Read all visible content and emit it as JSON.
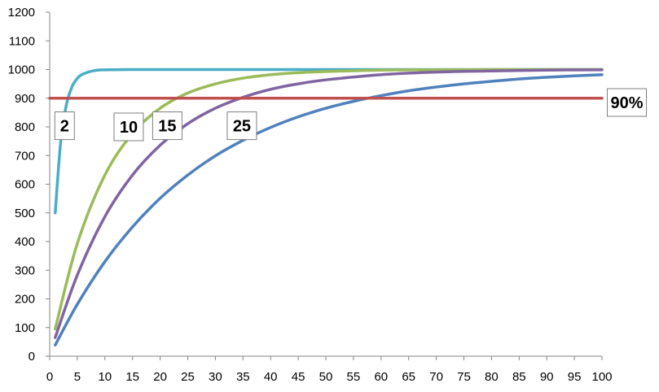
{
  "chart_data": {
    "type": "line",
    "title": "",
    "xlabel": "",
    "ylabel": "",
    "xlim": [
      0,
      100
    ],
    "ylim": [
      0,
      1200
    ],
    "x_ticks": [
      0,
      5,
      10,
      15,
      20,
      25,
      30,
      35,
      40,
      45,
      50,
      55,
      60,
      65,
      70,
      75,
      80,
      85,
      90,
      95,
      100
    ],
    "y_ticks": [
      0,
      100,
      200,
      300,
      400,
      500,
      600,
      700,
      800,
      900,
      1000,
      1100,
      1200
    ],
    "grid": false,
    "legend": "none",
    "series": [
      {
        "label": "2",
        "color": "#4bacc6",
        "x": [
          1,
          2,
          3,
          4,
          5,
          6,
          8,
          10,
          15,
          20,
          30,
          50,
          75,
          100
        ],
        "y": [
          500,
          750,
          875,
          938,
          969,
          984,
          996,
          999,
          1000,
          1000,
          1000,
          1000,
          1000,
          1000
        ]
      },
      {
        "label": "10",
        "color": "#9bbb59",
        "x": [
          1,
          5,
          10,
          15,
          20,
          25,
          30,
          35,
          40,
          45,
          50,
          60,
          70,
          80,
          90,
          100
        ],
        "y": [
          95,
          393,
          632,
          777,
          865,
          918,
          950,
          970,
          982,
          989,
          993,
          998,
          999,
          1000,
          1000,
          1000
        ]
      },
      {
        "label": "15",
        "color": "#8064a2",
        "x": [
          1,
          5,
          10,
          15,
          20,
          25,
          30,
          35,
          40,
          45,
          50,
          60,
          70,
          80,
          90,
          100
        ],
        "y": [
          65,
          283,
          487,
          632,
          736,
          811,
          865,
          903,
          931,
          950,
          964,
          982,
          991,
          995,
          998,
          999
        ]
      },
      {
        "label": "25",
        "color": "#4f81bd",
        "x": [
          1,
          5,
          10,
          15,
          20,
          25,
          30,
          35,
          40,
          45,
          50,
          55,
          60,
          65,
          70,
          75,
          80,
          85,
          90,
          95,
          100
        ],
        "y": [
          39,
          181,
          330,
          451,
          551,
          632,
          699,
          753,
          798,
          835,
          865,
          889,
          909,
          926,
          939,
          950,
          959,
          967,
          973,
          978,
          982
        ]
      },
      {
        "label": "90%",
        "color": "#c0504d",
        "x": [
          0,
          100
        ],
        "y": [
          900,
          900
        ]
      }
    ],
    "annotations": [
      {
        "text": "2",
        "x": 2.7,
        "y": 804
      },
      {
        "text": "10",
        "x": 14.3,
        "y": 800
      },
      {
        "text": "15",
        "x": 21.3,
        "y": 804
      },
      {
        "text": "25",
        "x": 34.8,
        "y": 804
      },
      {
        "text": "90%",
        "x": 104.5,
        "y": 885
      }
    ]
  }
}
